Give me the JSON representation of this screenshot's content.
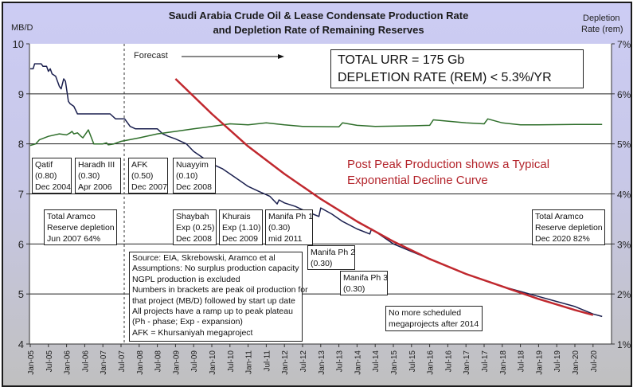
{
  "chart_data": {
    "type": "line",
    "title": "Saudi Arabia Crude Oil & Lease Condensate Production Rate",
    "subtitle": "and Depletion Rate of Remaining Reserves",
    "ylabel": "MB/D",
    "y2label_line1": "Depletion",
    "y2label_line2": "Rate (rem)",
    "ylim": [
      4,
      10
    ],
    "y2lim": [
      1,
      7
    ],
    "yticks": [
      "4",
      "5",
      "6",
      "7",
      "8",
      "9",
      "10"
    ],
    "y2ticks": [
      "1%",
      "2%",
      "3%",
      "4%",
      "5%",
      "6%",
      "7%"
    ],
    "grid": true,
    "x_tick_labels": [
      "Jan-05",
      "Jul-05",
      "Jan-06",
      "Jul-06",
      "Jan-07",
      "Jul-07",
      "Jan-08",
      "Jul-08",
      "Jan-09",
      "Jul-09",
      "Jan-10",
      "Jul-10",
      "Jan-11",
      "Jul-11",
      "Jan-12",
      "Jul-12",
      "Jan-13",
      "Jul-13",
      "Jan-14",
      "Jul-14",
      "Jan-15",
      "Jul-15",
      "Jan-16",
      "Jul-16",
      "Jan-17",
      "Jul-17",
      "Jan-18",
      "Jul-18",
      "Jan-19",
      "Jul-19",
      "Jan-20",
      "Jul-20"
    ],
    "forecast_start": "Jul-07",
    "series": [
      {
        "name": "Production (MB/D)",
        "axis": "left",
        "color": "#1a1f4e",
        "points": [
          [
            0,
            9.5
          ],
          [
            0.08,
            9.5
          ],
          [
            0.12,
            9.6
          ],
          [
            0.3,
            9.6
          ],
          [
            0.35,
            9.55
          ],
          [
            0.45,
            9.55
          ],
          [
            0.5,
            9.45
          ],
          [
            0.55,
            9.5
          ],
          [
            0.6,
            9.4
          ],
          [
            0.7,
            9.35
          ],
          [
            0.8,
            9.15
          ],
          [
            0.85,
            9.1
          ],
          [
            0.92,
            9.3
          ],
          [
            0.97,
            9.25
          ],
          [
            1.05,
            8.85
          ],
          [
            1.1,
            8.8
          ],
          [
            1.2,
            8.75
          ],
          [
            1.3,
            8.6
          ],
          [
            1.5,
            8.6
          ],
          [
            2.0,
            8.6
          ],
          [
            2.2,
            8.6
          ],
          [
            2.35,
            8.5
          ],
          [
            2.6,
            8.5
          ],
          [
            2.75,
            8.35
          ],
          [
            2.9,
            8.3
          ],
          [
            3.2,
            8.3
          ],
          [
            3.5,
            8.3
          ],
          [
            3.65,
            8.2
          ],
          [
            3.8,
            8.15
          ],
          [
            4.0,
            8.1
          ],
          [
            4.3,
            8.0
          ],
          [
            4.5,
            7.85
          ],
          [
            4.8,
            7.7
          ],
          [
            5.0,
            7.6
          ],
          [
            5.3,
            7.5
          ],
          [
            5.6,
            7.35
          ],
          [
            5.8,
            7.25
          ],
          [
            6.0,
            7.15
          ],
          [
            6.3,
            7.05
          ],
          [
            6.6,
            6.95
          ],
          [
            6.8,
            6.8
          ],
          [
            6.85,
            6.88
          ],
          [
            7.0,
            6.82
          ],
          [
            7.3,
            6.75
          ],
          [
            7.6,
            6.65
          ],
          [
            7.95,
            6.55
          ],
          [
            8.0,
            6.72
          ],
          [
            8.3,
            6.6
          ],
          [
            8.6,
            6.45
          ],
          [
            9.0,
            6.3
          ],
          [
            9.35,
            6.2
          ],
          [
            9.4,
            6.3
          ],
          [
            9.7,
            6.15
          ],
          [
            10.0,
            6.0
          ],
          [
            10.5,
            5.85
          ],
          [
            11.0,
            5.7
          ],
          [
            11.5,
            5.55
          ],
          [
            12.0,
            5.4
          ],
          [
            12.5,
            5.27
          ],
          [
            13.0,
            5.15
          ],
          [
            13.5,
            5.05
          ],
          [
            14.0,
            4.95
          ],
          [
            14.5,
            4.85
          ],
          [
            15.0,
            4.75
          ],
          [
            15.5,
            4.6
          ],
          [
            15.75,
            4.55
          ]
        ]
      },
      {
        "name": "Depletion Rate (rem) %",
        "axis": "right",
        "color": "#2e6e2a",
        "points": [
          [
            0,
            4.97
          ],
          [
            0.15,
            5.0
          ],
          [
            0.25,
            5.08
          ],
          [
            0.5,
            5.15
          ],
          [
            0.8,
            5.2
          ],
          [
            1.0,
            5.18
          ],
          [
            1.1,
            5.22
          ],
          [
            1.15,
            5.25
          ],
          [
            1.2,
            5.2
          ],
          [
            1.3,
            5.22
          ],
          [
            1.4,
            5.15
          ],
          [
            1.45,
            5.12
          ],
          [
            1.6,
            5.28
          ],
          [
            1.75,
            5.0
          ],
          [
            2.0,
            5.0
          ],
          [
            2.1,
            5.02
          ],
          [
            2.15,
            4.98
          ],
          [
            2.3,
            5.0
          ],
          [
            2.5,
            5.05
          ],
          [
            3.0,
            5.12
          ],
          [
            3.5,
            5.2
          ],
          [
            4.0,
            5.25
          ],
          [
            4.5,
            5.3
          ],
          [
            5.0,
            5.35
          ],
          [
            5.5,
            5.4
          ],
          [
            6.0,
            5.38
          ],
          [
            6.5,
            5.42
          ],
          [
            7.0,
            5.38
          ],
          [
            7.5,
            5.35
          ],
          [
            8.5,
            5.34
          ],
          [
            8.6,
            5.42
          ],
          [
            9.0,
            5.37
          ],
          [
            9.5,
            5.35
          ],
          [
            10.5,
            5.36
          ],
          [
            11.0,
            5.37
          ],
          [
            11.1,
            5.48
          ],
          [
            12.0,
            5.42
          ],
          [
            12.5,
            5.4
          ],
          [
            12.6,
            5.5
          ],
          [
            13.0,
            5.42
          ],
          [
            13.5,
            5.38
          ],
          [
            14.0,
            5.38
          ],
          [
            15.0,
            5.39
          ],
          [
            15.75,
            5.39
          ]
        ]
      },
      {
        "name": "Exponential Decline Curve (MB/D)",
        "axis": "left",
        "color": "#c0282e",
        "points": [
          [
            4.0,
            9.3
          ],
          [
            5.0,
            8.6
          ],
          [
            6.0,
            7.95
          ],
          [
            7.0,
            7.4
          ],
          [
            8.0,
            6.9
          ],
          [
            9.0,
            6.45
          ],
          [
            10.0,
            6.05
          ],
          [
            11.0,
            5.7
          ],
          [
            12.0,
            5.4
          ],
          [
            13.0,
            5.15
          ],
          [
            14.0,
            4.9
          ],
          [
            15.0,
            4.68
          ],
          [
            15.5,
            4.58
          ]
        ]
      }
    ]
  },
  "header": {
    "title_line1": "Saudi Arabia Crude Oil & Lease Condensate Production Rate",
    "title_line2": "and Depletion Rate of Remaining Reserves"
  },
  "annotations": {
    "forecast_label": "Forecast",
    "urr_line1": "TOTAL URR = 175 Gb",
    "urr_line2": "DEPLETION RATE (REM) < 5.3%/YR",
    "decline_line1": "Post Peak Production shows a Typical",
    "decline_line2": "Exponential Decline Curve",
    "projects": [
      {
        "l1": "Qatif",
        "l2": "(0.80)",
        "l3": "Dec 2004"
      },
      {
        "l1": "Haradh III",
        "l2": "(0.30)",
        "l3": "Apr 2006"
      },
      {
        "l1": "AFK",
        "l2": "(0.50)",
        "l3": "Dec 2007"
      },
      {
        "l1": "Nuayyim",
        "l2": "(0.10)",
        "l3": "Dec 2008"
      },
      {
        "l1": "Shaybah",
        "l2": "Exp (0.25)",
        "l3": "Dec 2008"
      },
      {
        "l1": "Khurais",
        "l2": "Exp (1.10)",
        "l3": "Dec 2009"
      },
      {
        "l1": "Manifa Ph 1",
        "l2": "(0.30)",
        "l3": "mid 2011"
      },
      {
        "l1": "Manifa Ph 2",
        "l2": "(0.30)"
      },
      {
        "l1": "Manifa Ph 3",
        "l2": "(0.30)"
      }
    ],
    "aramco_2007": {
      "l1": "Total Aramco",
      "l2": "Reserve depletion",
      "l3": "Jun 2007 64%"
    },
    "aramco_2020": {
      "l1": "Total Aramco",
      "l2": "Reserve depletion",
      "l3": "Dec 2020 82%"
    },
    "no_more": {
      "l1": "No more scheduled",
      "l2": "megaprojects after 2014"
    },
    "source_notes": [
      "Source: EIA, Skrebowski, Aramco et al",
      "Assumptions: No surplus production capacity",
      "NGPL production is excluded",
      "Numbers in brackets are peak oil production for",
      "that project (MB/D) followed by start up date",
      "All projects have a ramp up to peak plateau",
      "(Ph - phase; Exp - expansion)",
      "AFK = Khursaniyah megaproject"
    ]
  }
}
